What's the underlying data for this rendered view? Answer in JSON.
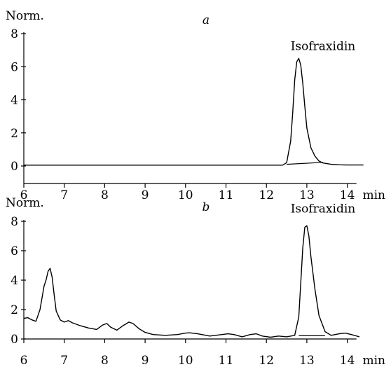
{
  "chart_data": [
    {
      "type": "line",
      "panel_label": "a",
      "ylabel": "Norm.",
      "xlabel": "min",
      "xlim": [
        6,
        14.4
      ],
      "ylim": [
        0,
        8
      ],
      "x_ticks": [
        6,
        7,
        8,
        9,
        10,
        11,
        12,
        13,
        14
      ],
      "y_ticks": [
        0,
        2,
        4,
        6,
        8
      ],
      "annotations": [
        {
          "text": "Isofraxidin",
          "x": 13.4,
          "y": 7.0
        }
      ],
      "series": [
        {
          "x": [
            6.0,
            12.4,
            12.5,
            12.6,
            12.65,
            12.7,
            12.75,
            12.8,
            12.85,
            12.9,
            12.95,
            13.0,
            13.1,
            13.2,
            13.3,
            13.4,
            13.6,
            13.8,
            14.0,
            14.4
          ],
          "y": [
            0.05,
            0.05,
            0.2,
            1.5,
            3.2,
            5.2,
            6.3,
            6.5,
            6.1,
            5.0,
            3.6,
            2.3,
            1.1,
            0.6,
            0.3,
            0.18,
            0.1,
            0.07,
            0.06,
            0.06
          ]
        }
      ],
      "peak_baseline": {
        "x": [
          12.5,
          13.4
        ],
        "y": [
          0.1,
          0.22
        ]
      }
    },
    {
      "type": "line",
      "panel_label": "b",
      "ylabel": "Norm.",
      "xlabel": "min",
      "xlim": [
        6,
        14.4
      ],
      "ylim": [
        0,
        8
      ],
      "x_ticks": [
        6,
        7,
        8,
        9,
        10,
        11,
        12,
        13,
        14
      ],
      "y_ticks": [
        0,
        2,
        4,
        6,
        8
      ],
      "annotations": [
        {
          "text": "Isofraxidin",
          "x": 13.4,
          "y": 8.6
        }
      ],
      "series": [
        {
          "x": [
            6.0,
            6.1,
            6.2,
            6.3,
            6.4,
            6.5,
            6.55,
            6.6,
            6.65,
            6.7,
            6.75,
            6.8,
            6.9,
            7.0,
            7.1,
            7.2,
            7.4,
            7.6,
            7.8,
            7.95,
            8.05,
            8.15,
            8.3,
            8.45,
            8.6,
            8.7,
            8.85,
            9.0,
            9.2,
            9.5,
            9.8,
            10.0,
            10.1,
            10.3,
            10.6,
            10.9,
            11.05,
            11.2,
            11.4,
            11.6,
            11.75,
            11.9,
            12.1,
            12.3,
            12.5,
            12.7,
            12.8,
            12.85,
            12.9,
            12.95,
            13.0,
            13.05,
            13.1,
            13.2,
            13.3,
            13.45,
            13.6,
            13.8,
            13.95,
            14.1,
            14.3
          ],
          "y": [
            1.4,
            1.45,
            1.3,
            1.2,
            2.0,
            3.6,
            4.0,
            4.6,
            4.8,
            4.2,
            3.0,
            1.9,
            1.3,
            1.15,
            1.25,
            1.1,
            0.9,
            0.75,
            0.65,
            0.95,
            1.05,
            0.8,
            0.6,
            0.9,
            1.15,
            1.05,
            0.7,
            0.45,
            0.3,
            0.25,
            0.3,
            0.4,
            0.42,
            0.35,
            0.2,
            0.3,
            0.35,
            0.3,
            0.15,
            0.3,
            0.35,
            0.2,
            0.12,
            0.2,
            0.15,
            0.25,
            1.5,
            3.8,
            6.2,
            7.6,
            7.7,
            7.0,
            5.6,
            3.4,
            1.6,
            0.5,
            0.25,
            0.35,
            0.4,
            0.3,
            0.15
          ]
        }
      ],
      "peak_baseline": {
        "x": [
          12.8,
          13.45
        ],
        "y": [
          0.22,
          0.22
        ]
      }
    }
  ]
}
